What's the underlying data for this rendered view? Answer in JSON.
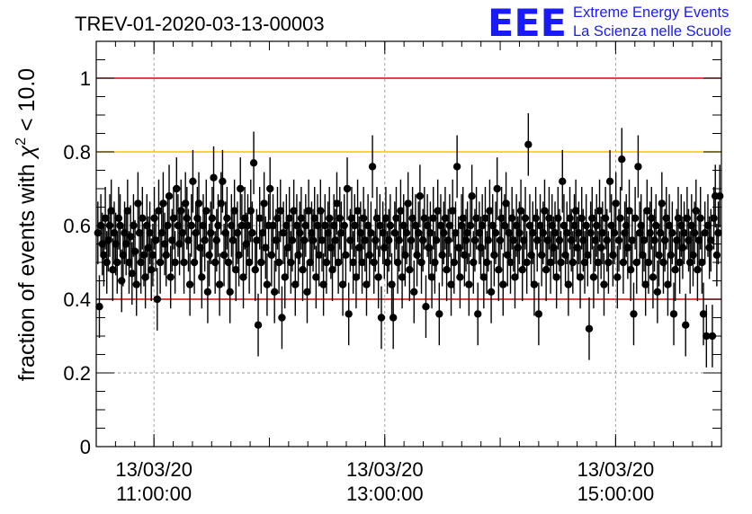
{
  "chart_data": {
    "type": "scatter",
    "title": "TREV-01-2020-03-13-00003",
    "ylabel_parts": [
      "fraction of events with ",
      "χ",
      "2",
      " < 10.0"
    ],
    "ylim": [
      0,
      1.1
    ],
    "yticks": [
      "0",
      "0.2",
      "0.4",
      "0.6",
      "0.8",
      "1"
    ],
    "xlim": [
      "13/03/20 10:30:00",
      "13/03/20 15:55:00"
    ],
    "xticks": [
      {
        "date": "13/03/20",
        "time": "11:00:00"
      },
      {
        "date": "13/03/20",
        "time": "13:00:00"
      },
      {
        "date": "13/03/20",
        "time": "15:00:00"
      }
    ],
    "grid": true,
    "reference_lines": [
      {
        "y": 1.0,
        "color": "#e00000"
      },
      {
        "y": 0.8,
        "color": "#ffc000"
      },
      {
        "y": 0.4,
        "color": "#e00000"
      }
    ],
    "error": 0.085,
    "values": [
      0.58,
      0.38,
      0.6,
      0.55,
      0.52,
      0.62,
      0.5,
      0.56,
      0.6,
      0.64,
      0.48,
      0.58,
      0.55,
      0.5,
      0.62,
      0.6,
      0.45,
      0.52,
      0.58,
      0.55,
      0.64,
      0.5,
      0.57,
      0.47,
      0.6,
      0.53,
      0.44,
      0.66,
      0.58,
      0.5,
      0.62,
      0.52,
      0.46,
      0.6,
      0.54,
      0.58,
      0.48,
      0.52,
      0.62,
      0.56,
      0.4,
      0.64,
      0.5,
      0.58,
      0.66,
      0.55,
      0.52,
      0.6,
      0.68,
      0.46,
      0.56,
      0.62,
      0.5,
      0.7,
      0.6,
      0.55,
      0.64,
      0.58,
      0.5,
      0.66,
      0.62,
      0.56,
      0.44,
      0.6,
      0.72,
      0.5,
      0.58,
      0.62,
      0.66,
      0.54,
      0.46,
      0.6,
      0.56,
      0.64,
      0.42,
      0.52,
      0.58,
      0.62,
      0.73,
      0.5,
      0.56,
      0.6,
      0.44,
      0.66,
      0.72,
      0.52,
      0.58,
      0.62,
      0.5,
      0.42,
      0.6,
      0.56,
      0.64,
      0.48,
      0.58,
      0.52,
      0.7,
      0.6,
      0.46,
      0.62,
      0.55,
      0.6,
      0.5,
      0.64,
      0.58,
      0.77,
      0.48,
      0.56,
      0.33,
      0.62,
      0.5,
      0.58,
      0.66,
      0.54,
      0.44,
      0.6,
      0.7,
      0.52,
      0.6,
      0.42,
      0.56,
      0.62,
      0.5,
      0.64,
      0.35,
      0.58,
      0.46,
      0.6,
      0.54,
      0.62,
      0.5,
      0.56,
      0.64,
      0.44,
      0.6,
      0.52,
      0.58,
      0.62,
      0.48,
      0.56,
      0.6,
      0.42,
      0.64,
      0.5,
      0.58,
      0.56,
      0.62,
      0.46,
      0.6,
      0.52,
      0.64,
      0.56,
      0.44,
      0.6,
      0.5,
      0.58,
      0.62,
      0.54,
      0.48,
      0.6,
      0.56,
      0.66,
      0.5,
      0.62,
      0.58,
      0.44,
      0.6,
      0.52,
      0.7,
      0.36,
      0.56,
      0.62,
      0.5,
      0.6,
      0.46,
      0.64,
      0.54,
      0.58,
      0.5,
      0.62,
      0.56,
      0.44,
      0.6,
      0.52,
      0.58,
      0.76,
      0.5,
      0.56,
      0.62,
      0.46,
      0.6,
      0.35,
      0.58,
      0.54,
      0.62,
      0.5,
      0.56,
      0.6,
      0.44,
      0.35,
      0.58,
      0.62,
      0.5,
      0.56,
      0.64,
      0.46,
      0.6,
      0.52,
      0.58,
      0.66,
      0.48,
      0.56,
      0.62,
      0.42,
      0.6,
      0.52,
      0.58,
      0.68,
      0.5,
      0.56,
      0.62,
      0.38,
      0.6,
      0.54,
      0.58,
      0.46,
      0.62,
      0.5,
      0.56,
      0.64,
      0.36,
      0.6,
      0.52,
      0.58,
      0.62,
      0.48,
      0.56,
      0.6,
      0.44,
      0.64,
      0.5,
      0.58,
      0.76,
      0.54,
      0.46,
      0.6,
      0.62,
      0.52,
      0.56,
      0.58,
      0.44,
      0.6,
      0.68,
      0.5,
      0.56,
      0.62,
      0.36,
      0.58,
      0.54,
      0.6,
      0.46,
      0.62,
      0.5,
      0.56,
      0.64,
      0.42,
      0.6,
      0.52,
      0.58,
      0.7,
      0.48,
      0.56,
      0.62,
      0.44,
      0.6,
      0.66,
      0.52,
      0.58,
      0.5,
      0.62,
      0.56,
      0.46,
      0.6,
      0.54,
      0.58,
      0.64,
      0.48,
      0.56,
      0.62,
      0.5,
      0.82,
      0.6,
      0.52,
      0.58,
      0.44,
      0.62,
      0.56,
      0.36,
      0.6,
      0.52,
      0.58,
      0.64,
      0.48,
      0.56,
      0.62,
      0.5,
      0.6,
      0.54,
      0.58,
      0.46,
      0.62,
      0.56,
      0.5,
      0.72,
      0.6,
      0.52,
      0.58,
      0.44,
      0.62,
      0.56,
      0.5,
      0.6,
      0.64,
      0.54,
      0.58,
      0.46,
      0.62,
      0.56,
      0.5,
      0.6,
      0.52,
      0.32,
      0.58,
      0.62,
      0.46,
      0.56,
      0.6,
      0.5,
      0.64,
      0.54,
      0.58,
      0.44,
      0.62,
      0.56,
      0.5,
      0.72,
      0.6,
      0.52,
      0.58,
      0.66,
      0.46,
      0.56,
      0.62,
      0.78,
      0.5,
      0.58,
      0.6,
      0.54,
      0.64,
      0.48,
      0.56,
      0.36,
      0.62,
      0.5,
      0.76,
      0.58,
      0.6,
      0.52,
      0.56,
      0.44,
      0.64,
      0.5,
      0.58,
      0.62,
      0.46,
      0.56,
      0.6,
      0.42,
      0.52,
      0.58,
      0.66,
      0.5,
      0.56,
      0.62,
      0.44,
      0.6,
      0.52,
      0.58,
      0.36,
      0.48,
      0.56,
      0.62,
      0.5,
      0.6,
      0.54,
      0.58,
      0.33,
      0.62,
      0.56,
      0.5,
      0.6,
      0.52,
      0.58,
      0.64,
      0.48,
      0.56,
      0.62,
      0.5,
      0.36,
      0.58,
      0.3,
      0.6,
      0.54,
      0.56,
      0.3,
      0.62,
      0.68,
      0.52,
      0.58,
      0.68
    ]
  },
  "logo": {
    "mark": "EEE",
    "line1": "Extreme Energy Events",
    "line2": "La Scienza nelle Scuole",
    "color": "#1a1aff"
  }
}
